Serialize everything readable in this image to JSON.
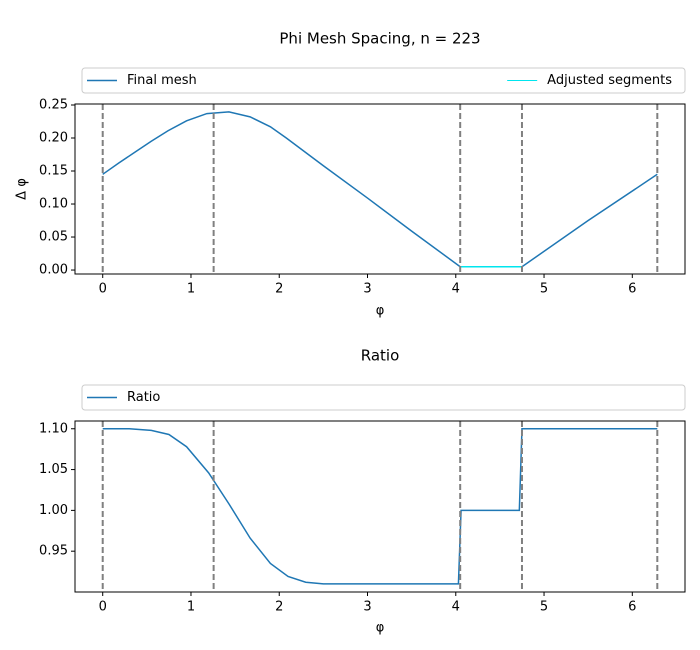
{
  "chart_data": [
    {
      "type": "line",
      "title": "Phi Mesh Spacing, n = 223",
      "xlabel": "φ",
      "ylabel": "Δ φ",
      "xlim": [
        -0.314,
        6.597
      ],
      "ylim": [
        -0.006,
        0.2515
      ],
      "xticks": [
        0,
        1,
        2,
        3,
        4,
        5,
        6
      ],
      "yticks": [
        {
          "value": 0,
          "label": "0.00"
        },
        0.05,
        {
          "value": 0.1,
          "label": "0.10"
        },
        0.15,
        {
          "value": 0.2,
          "label": "0.20"
        },
        0.25
      ],
      "vlines": [
        0,
        1.2566,
        4.05,
        4.75,
        6.2832
      ],
      "series": [
        {
          "name": "Final mesh",
          "color": "#1f77b4",
          "x": [
            0,
            0.18,
            0.37,
            0.55,
            0.74,
            0.95,
            1.18,
            1.43,
            1.67,
            1.9,
            2.08,
            2.5,
            3.0,
            3.5,
            4.05,
            4.75,
            5.5,
            6.2832
          ],
          "values": [
            0.145,
            0.162,
            0.179,
            0.195,
            0.211,
            0.226,
            0.237,
            0.2395,
            0.232,
            0.217,
            0.2,
            0.158,
            0.109,
            0.059,
            0.005,
            0.005,
            0.075,
            0.145
          ]
        },
        {
          "name": "Adjusted segments",
          "color": "#00e5ee",
          "x": [
            4.05,
            4.75
          ],
          "values": [
            0.005,
            0.005
          ]
        }
      ]
    },
    {
      "type": "line",
      "title": "Ratio",
      "xlabel": "φ",
      "xlim": [
        -0.314,
        6.597
      ],
      "ylim": [
        0.9,
        1.1095
      ],
      "xticks": [
        0,
        1,
        2,
        3,
        4,
        5,
        6
      ],
      "yticks": [
        0.95,
        {
          "value": 1,
          "label": "1.00"
        },
        1.05,
        {
          "value": 1.1,
          "label": "1.10"
        }
      ],
      "vlines": [
        0,
        1.2566,
        4.05,
        4.75,
        6.2832
      ],
      "series": [
        {
          "name": "Ratio",
          "color": "#1f77b4",
          "x": [
            0,
            0.3,
            0.55,
            0.75,
            0.95,
            1.2,
            1.43,
            1.67,
            1.9,
            2.1,
            2.3,
            2.5,
            3.0,
            4.03,
            4.06,
            4.72,
            4.75,
            6.2832
          ],
          "values": [
            1.1,
            1.1,
            1.098,
            1.093,
            1.078,
            1.046,
            1.008,
            0.966,
            0.935,
            0.919,
            0.912,
            0.91,
            0.91,
            0.91,
            1.0,
            1.0,
            1.1,
            1.1
          ]
        }
      ]
    }
  ]
}
